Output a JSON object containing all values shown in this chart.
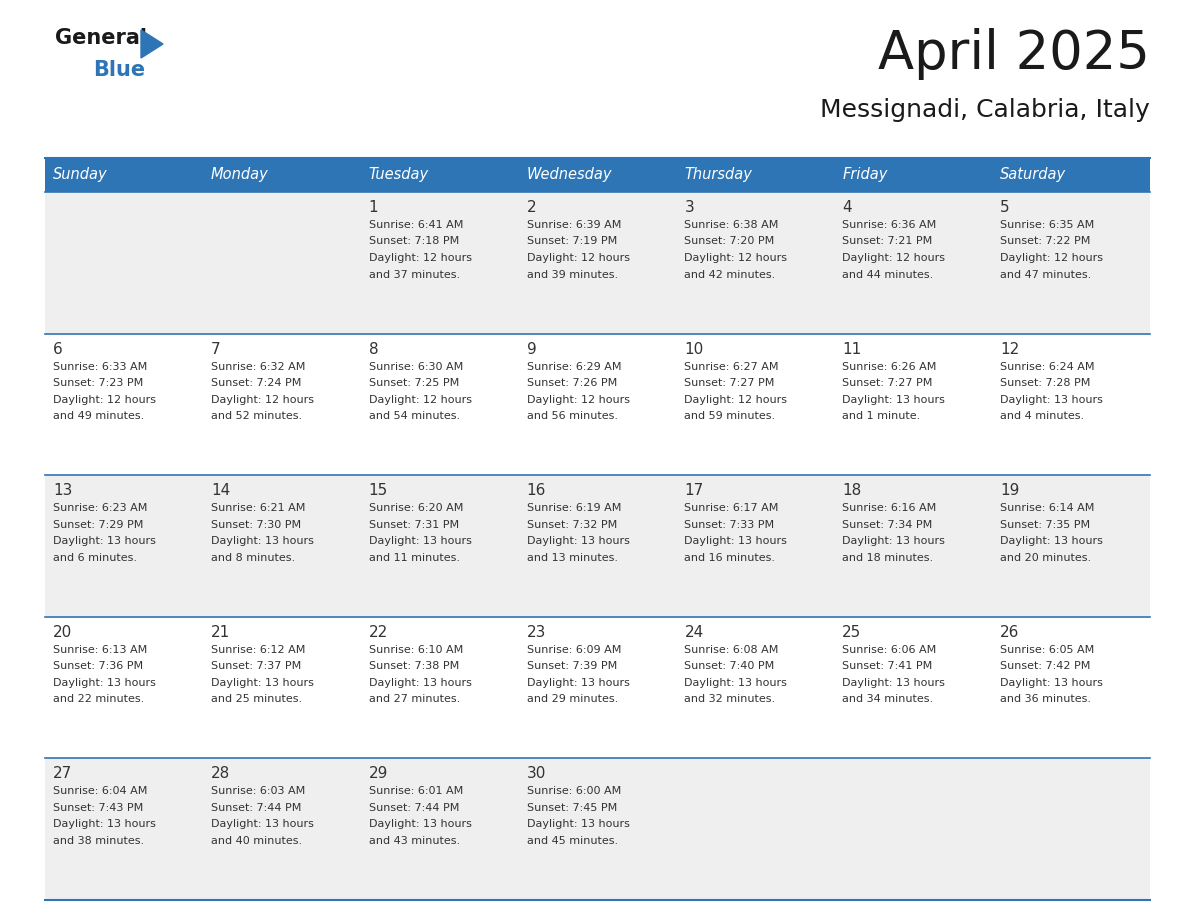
{
  "title": "April 2025",
  "subtitle": "Messignadi, Calabria, Italy",
  "header_color": "#2E75B6",
  "header_text_color": "#FFFFFF",
  "bg_color": "#FFFFFF",
  "row0_color": "#EFEFEF",
  "row1_color": "#FFFFFF",
  "border_color": "#2E75B6",
  "text_color": "#333333",
  "days_of_week": [
    "Sunday",
    "Monday",
    "Tuesday",
    "Wednesday",
    "Thursday",
    "Friday",
    "Saturday"
  ],
  "calendar_data": [
    [
      {
        "day": "",
        "info": ""
      },
      {
        "day": "",
        "info": ""
      },
      {
        "day": "1",
        "info": "Sunrise: 6:41 AM\nSunset: 7:18 PM\nDaylight: 12 hours\nand 37 minutes."
      },
      {
        "day": "2",
        "info": "Sunrise: 6:39 AM\nSunset: 7:19 PM\nDaylight: 12 hours\nand 39 minutes."
      },
      {
        "day": "3",
        "info": "Sunrise: 6:38 AM\nSunset: 7:20 PM\nDaylight: 12 hours\nand 42 minutes."
      },
      {
        "day": "4",
        "info": "Sunrise: 6:36 AM\nSunset: 7:21 PM\nDaylight: 12 hours\nand 44 minutes."
      },
      {
        "day": "5",
        "info": "Sunrise: 6:35 AM\nSunset: 7:22 PM\nDaylight: 12 hours\nand 47 minutes."
      }
    ],
    [
      {
        "day": "6",
        "info": "Sunrise: 6:33 AM\nSunset: 7:23 PM\nDaylight: 12 hours\nand 49 minutes."
      },
      {
        "day": "7",
        "info": "Sunrise: 6:32 AM\nSunset: 7:24 PM\nDaylight: 12 hours\nand 52 minutes."
      },
      {
        "day": "8",
        "info": "Sunrise: 6:30 AM\nSunset: 7:25 PM\nDaylight: 12 hours\nand 54 minutes."
      },
      {
        "day": "9",
        "info": "Sunrise: 6:29 AM\nSunset: 7:26 PM\nDaylight: 12 hours\nand 56 minutes."
      },
      {
        "day": "10",
        "info": "Sunrise: 6:27 AM\nSunset: 7:27 PM\nDaylight: 12 hours\nand 59 minutes."
      },
      {
        "day": "11",
        "info": "Sunrise: 6:26 AM\nSunset: 7:27 PM\nDaylight: 13 hours\nand 1 minute."
      },
      {
        "day": "12",
        "info": "Sunrise: 6:24 AM\nSunset: 7:28 PM\nDaylight: 13 hours\nand 4 minutes."
      }
    ],
    [
      {
        "day": "13",
        "info": "Sunrise: 6:23 AM\nSunset: 7:29 PM\nDaylight: 13 hours\nand 6 minutes."
      },
      {
        "day": "14",
        "info": "Sunrise: 6:21 AM\nSunset: 7:30 PM\nDaylight: 13 hours\nand 8 minutes."
      },
      {
        "day": "15",
        "info": "Sunrise: 6:20 AM\nSunset: 7:31 PM\nDaylight: 13 hours\nand 11 minutes."
      },
      {
        "day": "16",
        "info": "Sunrise: 6:19 AM\nSunset: 7:32 PM\nDaylight: 13 hours\nand 13 minutes."
      },
      {
        "day": "17",
        "info": "Sunrise: 6:17 AM\nSunset: 7:33 PM\nDaylight: 13 hours\nand 16 minutes."
      },
      {
        "day": "18",
        "info": "Sunrise: 6:16 AM\nSunset: 7:34 PM\nDaylight: 13 hours\nand 18 minutes."
      },
      {
        "day": "19",
        "info": "Sunrise: 6:14 AM\nSunset: 7:35 PM\nDaylight: 13 hours\nand 20 minutes."
      }
    ],
    [
      {
        "day": "20",
        "info": "Sunrise: 6:13 AM\nSunset: 7:36 PM\nDaylight: 13 hours\nand 22 minutes."
      },
      {
        "day": "21",
        "info": "Sunrise: 6:12 AM\nSunset: 7:37 PM\nDaylight: 13 hours\nand 25 minutes."
      },
      {
        "day": "22",
        "info": "Sunrise: 6:10 AM\nSunset: 7:38 PM\nDaylight: 13 hours\nand 27 minutes."
      },
      {
        "day": "23",
        "info": "Sunrise: 6:09 AM\nSunset: 7:39 PM\nDaylight: 13 hours\nand 29 minutes."
      },
      {
        "day": "24",
        "info": "Sunrise: 6:08 AM\nSunset: 7:40 PM\nDaylight: 13 hours\nand 32 minutes."
      },
      {
        "day": "25",
        "info": "Sunrise: 6:06 AM\nSunset: 7:41 PM\nDaylight: 13 hours\nand 34 minutes."
      },
      {
        "day": "26",
        "info": "Sunrise: 6:05 AM\nSunset: 7:42 PM\nDaylight: 13 hours\nand 36 minutes."
      }
    ],
    [
      {
        "day": "27",
        "info": "Sunrise: 6:04 AM\nSunset: 7:43 PM\nDaylight: 13 hours\nand 38 minutes."
      },
      {
        "day": "28",
        "info": "Sunrise: 6:03 AM\nSunset: 7:44 PM\nDaylight: 13 hours\nand 40 minutes."
      },
      {
        "day": "29",
        "info": "Sunrise: 6:01 AM\nSunset: 7:44 PM\nDaylight: 13 hours\nand 43 minutes."
      },
      {
        "day": "30",
        "info": "Sunrise: 6:00 AM\nSunset: 7:45 PM\nDaylight: 13 hours\nand 45 minutes."
      },
      {
        "day": "",
        "info": ""
      },
      {
        "day": "",
        "info": ""
      },
      {
        "day": "",
        "info": ""
      }
    ]
  ]
}
